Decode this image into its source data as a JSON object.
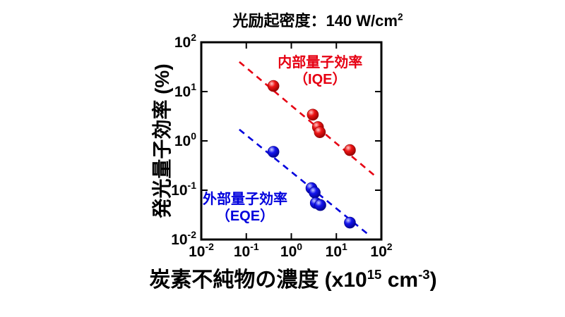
{
  "title_parts": [
    {
      "t": "光励起密度：140 W/cm"
    },
    {
      "t": "2",
      "sup": true
    }
  ],
  "chart_data": {
    "type": "scatter",
    "scale": "log-log",
    "title": "光励起密度：140 W/cm²",
    "xlabel": "炭素不純物の濃度 (x10¹⁵ cm⁻³)",
    "ylabel": "発光量子効率 (%)",
    "xlabel_parts": [
      {
        "t": "炭素不純物の濃度 (x10"
      },
      {
        "t": "15",
        "sup": true
      },
      {
        "t": " cm"
      },
      {
        "t": "-3",
        "sup": true
      },
      {
        "t": ")"
      }
    ],
    "xlim": [
      0.01,
      100
    ],
    "ylim": [
      0.01,
      100
    ],
    "x_tick_exponents": [
      -2,
      -1,
      0,
      1,
      2
    ],
    "y_tick_exponents": [
      2,
      1,
      0,
      -1,
      -2
    ],
    "grid": false,
    "legend_position": "inline-annotations",
    "series": [
      {
        "name": "内部量子効率（IQE）",
        "id": "iqe",
        "color": "#e60012",
        "gradient": [
          "#ffc9c9",
          "#ee1515",
          "#8f0000"
        ],
        "points": [
          [
            0.4,
            13
          ],
          [
            3.0,
            3.4
          ],
          [
            3.9,
            1.9
          ],
          [
            4.3,
            1.5
          ],
          [
            20,
            0.65
          ]
        ],
        "trend": {
          "x1": 0.07,
          "y1": 40,
          "x2": 70,
          "y2": 0.2
        },
        "label": {
          "line1": "内部量子効率",
          "line2": "（IQE）",
          "fx": 0.66,
          "fy": 0.125
        }
      },
      {
        "name": "外部量子効率（EQE）",
        "id": "eqe",
        "color": "#0000dd",
        "gradient": [
          "#c9cdff",
          "#1515ee",
          "#00008a"
        ],
        "points": [
          [
            0.4,
            0.6
          ],
          [
            2.8,
            0.11
          ],
          [
            3.3,
            0.09
          ],
          [
            3.5,
            0.055
          ],
          [
            4.4,
            0.05
          ],
          [
            20,
            0.022
          ]
        ],
        "trend": {
          "x1": 0.07,
          "y1": 1.7,
          "x2": 55,
          "y2": 0.012
        },
        "label": {
          "line1": "外部量子効率",
          "line2": "（EQE）",
          "fx": 0.243,
          "fy": 0.818
        }
      }
    ]
  }
}
